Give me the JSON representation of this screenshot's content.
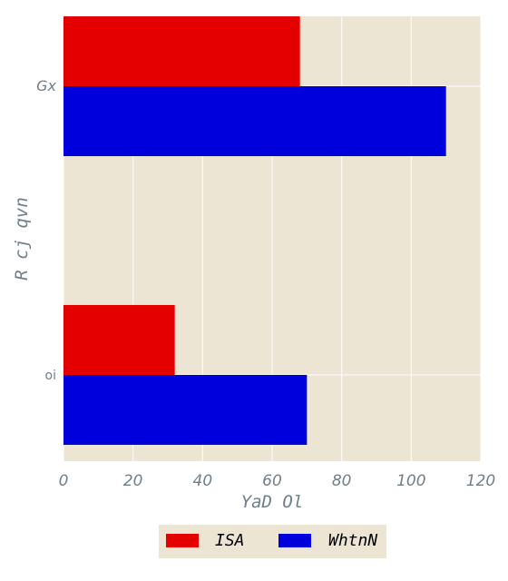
{
  "chart_data": {
    "type": "bar",
    "orientation": "horizontal",
    "categories": [
      "Gx",
      "oi"
    ],
    "series": [
      {
        "name": "ISA",
        "values": [
          68,
          32
        ],
        "color": "#e50000"
      },
      {
        "name": "WhtnN",
        "values": [
          110,
          70
        ],
        "color": "#0000dc"
      }
    ],
    "xlabel": "YaD Ol",
    "ylabel": "R cj qvn",
    "xlim": [
      0,
      120
    ],
    "xticks": [
      "0",
      "20",
      "40",
      "60",
      "80",
      "100",
      "120"
    ],
    "grid": true,
    "legend_position": "bottom-center",
    "background_color": "#ede5d3",
    "grid_color": "#ffffff"
  }
}
